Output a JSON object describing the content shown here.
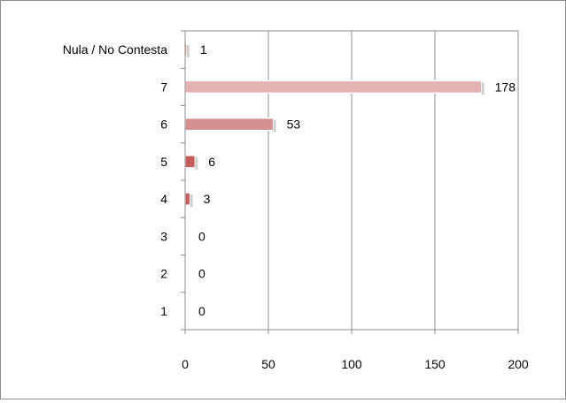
{
  "chart_data": {
    "type": "bar",
    "orientation": "horizontal",
    "categories": [
      "Nula / No Contesta",
      "7",
      "6",
      "5",
      "4",
      "3",
      "2",
      "1"
    ],
    "values": [
      1,
      178,
      53,
      6,
      3,
      0,
      0,
      0
    ],
    "data_labels": [
      "1",
      "178",
      "53",
      "6",
      "3",
      "0",
      "0",
      "0"
    ],
    "x_ticks": [
      "0",
      "50",
      "100",
      "150",
      "200"
    ],
    "xlim": [
      0,
      200
    ],
    "grid": true,
    "bar_colors": {
      "light": "#e4b2b2",
      "mid": "#d48f8f",
      "dark": "#c65c5c",
      "accent": "#d06060"
    }
  }
}
